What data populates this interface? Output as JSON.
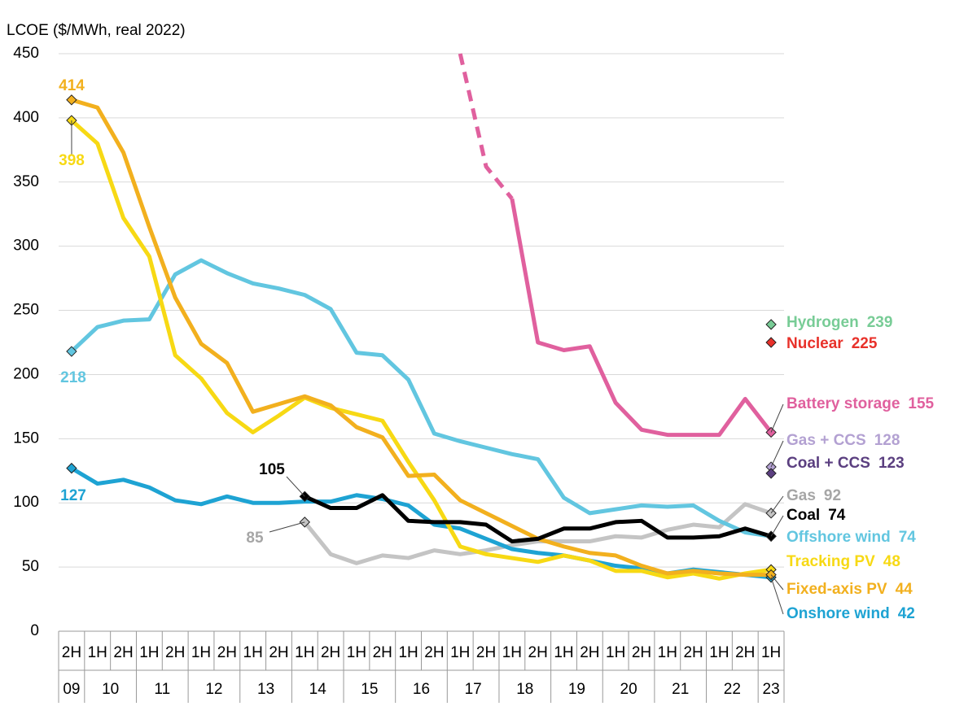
{
  "chart_data": {
    "type": "line",
    "y_label": "LCOE ($/MWh, real 2022)",
    "categories": [
      "2H",
      "1H",
      "2H",
      "1H",
      "2H",
      "1H",
      "2H",
      "1H",
      "2H",
      "1H",
      "2H",
      "1H",
      "2H",
      "1H",
      "2H",
      "1H",
      "2H",
      "1H",
      "2H",
      "1H",
      "2H",
      "1H",
      "2H",
      "1H",
      "2H",
      "1H",
      "2H",
      "1H"
    ],
    "category_groups": [
      "09",
      "10",
      "11",
      "12",
      "13",
      "14",
      "15",
      "16",
      "17",
      "18",
      "19",
      "20",
      "21",
      "22",
      "23"
    ],
    "ylim": [
      0,
      450
    ],
    "yticks": [
      0,
      50,
      100,
      150,
      200,
      250,
      300,
      350,
      400,
      450
    ],
    "grid": true,
    "series": [
      {
        "name": "Hydrogen",
        "color": "#78cc96",
        "values": [
          null,
          null,
          null,
          null,
          null,
          null,
          null,
          null,
          null,
          null,
          null,
          null,
          null,
          null,
          null,
          null,
          null,
          null,
          null,
          null,
          null,
          null,
          null,
          null,
          null,
          null,
          null,
          239
        ]
      },
      {
        "name": "Nuclear",
        "color": "#e8312a",
        "values": [
          null,
          null,
          null,
          null,
          null,
          null,
          null,
          null,
          null,
          null,
          null,
          null,
          null,
          null,
          null,
          null,
          null,
          null,
          null,
          null,
          null,
          null,
          null,
          null,
          null,
          null,
          null,
          225
        ]
      },
      {
        "name": "Battery storage",
        "color": "#e0609e",
        "dash_until": 17,
        "values": [
          null,
          null,
          null,
          null,
          null,
          null,
          null,
          null,
          null,
          null,
          null,
          null,
          null,
          null,
          null,
          450,
          362,
          337,
          225,
          219,
          222,
          178,
          157,
          153,
          153,
          153,
          181,
          155
        ]
      },
      {
        "name": "Gas + CCS",
        "color": "#b3a1d2",
        "values": [
          null,
          null,
          null,
          null,
          null,
          null,
          null,
          null,
          null,
          null,
          null,
          null,
          null,
          null,
          null,
          null,
          null,
          null,
          null,
          null,
          null,
          null,
          null,
          null,
          null,
          null,
          null,
          128
        ]
      },
      {
        "name": "Coal + CCS",
        "color": "#5b3f80",
        "values": [
          null,
          null,
          null,
          null,
          null,
          null,
          null,
          null,
          null,
          null,
          null,
          null,
          null,
          null,
          null,
          null,
          null,
          null,
          null,
          null,
          null,
          null,
          null,
          null,
          null,
          null,
          null,
          123
        ]
      },
      {
        "name": "Gas",
        "color": "#c4c4c4",
        "values": [
          null,
          null,
          null,
          null,
          null,
          null,
          null,
          null,
          null,
          85,
          60,
          53,
          59,
          57,
          63,
          60,
          63,
          67,
          70,
          70,
          70,
          74,
          73,
          79,
          83,
          81,
          99,
          92
        ]
      },
      {
        "name": "Coal",
        "color": "#000000",
        "values": [
          null,
          null,
          null,
          null,
          null,
          null,
          null,
          null,
          null,
          105,
          96,
          96,
          106,
          86,
          85,
          85,
          83,
          70,
          72,
          80,
          80,
          85,
          86,
          73,
          73,
          74,
          80,
          74
        ]
      },
      {
        "name": "Offshore wind",
        "color": "#62c6e0",
        "values": [
          218,
          237,
          242,
          243,
          278,
          289,
          279,
          271,
          267,
          262,
          251,
          217,
          215,
          196,
          154,
          148,
          143,
          138,
          134,
          104,
          92,
          95,
          98,
          97,
          98,
          86,
          77,
          74
        ]
      },
      {
        "name": "Tracking PV",
        "color": "#f7d914",
        "values": [
          398,
          380,
          322,
          292,
          215,
          197,
          170,
          155,
          168,
          182,
          174,
          169,
          164,
          132,
          102,
          66,
          60,
          57,
          54,
          59,
          55,
          47,
          47,
          42,
          45,
          41,
          45,
          48
        ]
      },
      {
        "name": "Fixed-axis PV",
        "color": "#f2b01e",
        "values": [
          414,
          408,
          373,
          315,
          260,
          224,
          209,
          171,
          177,
          183,
          176,
          159,
          151,
          121,
          122,
          102,
          92,
          82,
          72,
          66,
          61,
          59,
          51,
          45,
          47,
          45,
          44,
          44
        ]
      },
      {
        "name": "Onshore wind",
        "color": "#1ea3d3",
        "values": [
          127,
          115,
          118,
          112,
          102,
          99,
          105,
          100,
          100,
          101,
          101,
          106,
          103,
          98,
          83,
          80,
          72,
          64,
          61,
          59,
          55,
          51,
          49,
          45,
          48,
          46,
          44,
          42
        ]
      }
    ]
  }
}
